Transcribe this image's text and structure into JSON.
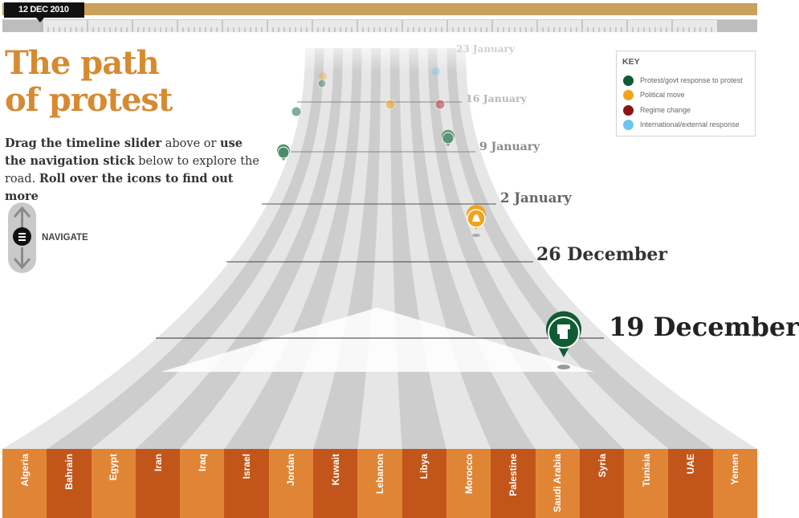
{
  "timeline": {
    "current_date": "12 DEC 2010",
    "bar_color": "#c9a05c"
  },
  "title_lines": [
    "The path",
    "of protest"
  ],
  "intro": {
    "part1": "Drag the timeline slider",
    "part2": " above or ",
    "part3": "use the navigation stick",
    "part4": " below to explore the road. ",
    "part5": "Roll over the icons to find out more"
  },
  "navigate": {
    "label": "NAVIGATE"
  },
  "key": {
    "title": "KEY",
    "items": [
      {
        "label": "Protest/govt response to protest",
        "color": "#0f5c32"
      },
      {
        "label": "Political move",
        "color": "#f3a21c"
      },
      {
        "label": "Regime change",
        "color": "#8c1414"
      },
      {
        "label": "International/external response",
        "color": "#6cc6f0"
      }
    ]
  },
  "dates": {
    "d23jan": "23 January",
    "d16jan": "16 January",
    "d9jan": "9 January",
    "d2jan": "2 January",
    "d26dec": "26 December",
    "d19dec": "19 December"
  },
  "countries": [
    "Algeria",
    "Bahrain",
    "Egypt",
    "Iran",
    "Iraq",
    "Israel",
    "Jordan",
    "Kuwait",
    "Lebanon",
    "Libya",
    "Morocco",
    "Palestine",
    "Saudi Arabia",
    "Syria",
    "Tunisia",
    "UAE",
    "Yemen"
  ],
  "colors": {
    "accent": "#d68a32",
    "country_light": "#e08536",
    "country_dark": "#c2561a"
  }
}
